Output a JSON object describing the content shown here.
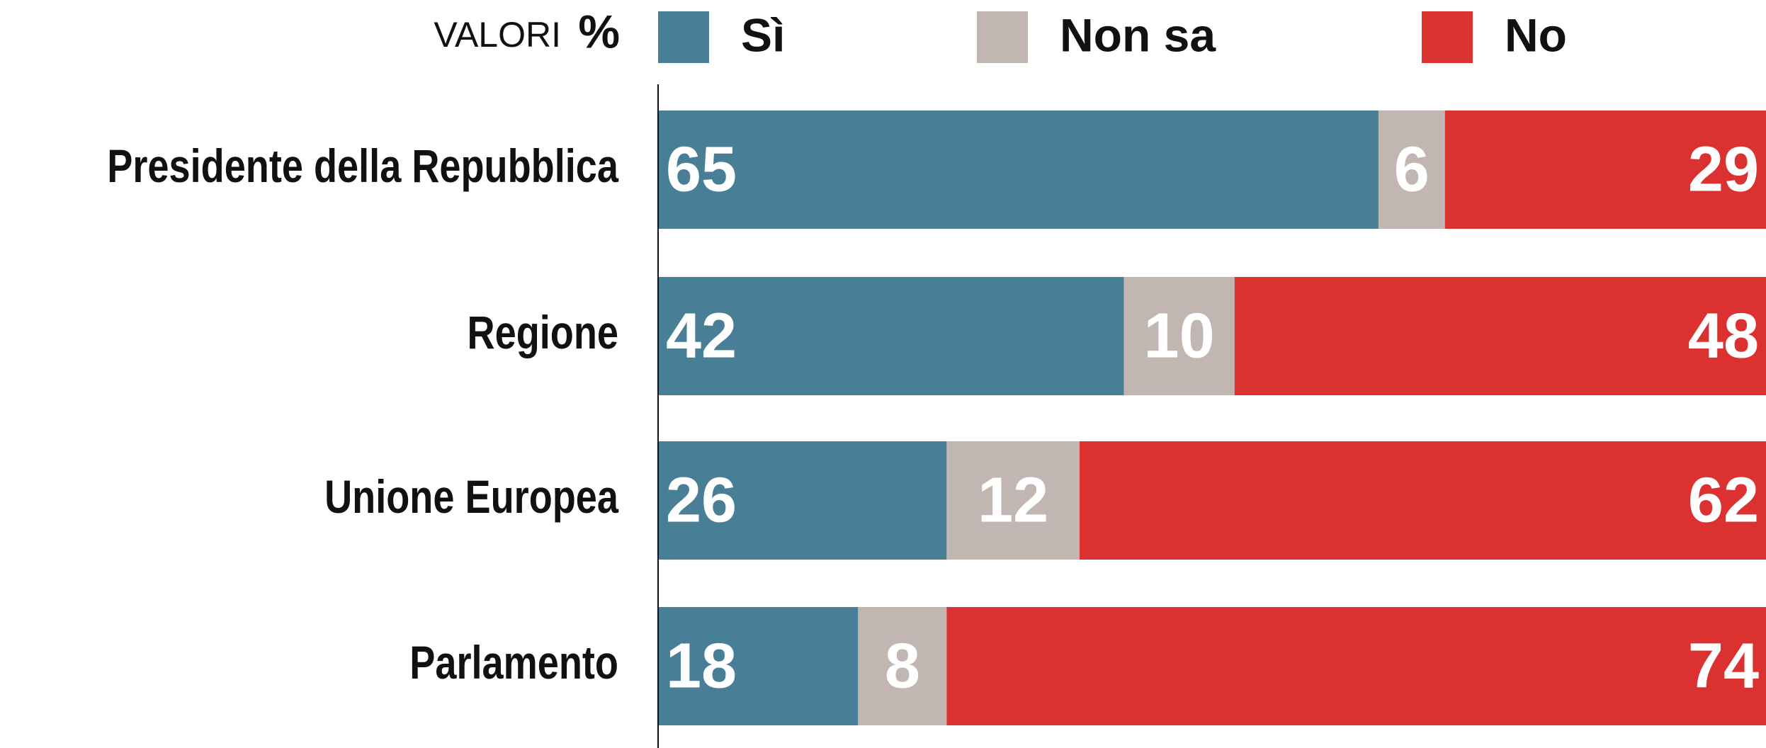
{
  "chart_data": {
    "type": "stacked-bar-horizontal",
    "subtitle": "VALORI",
    "unit": "%",
    "categories": [
      "Presidente della Repubblica",
      "Regione",
      "Unione Europea",
      "Parlamento"
    ],
    "series": [
      {
        "name": "Sì",
        "color": "#487e96",
        "values": [
          65,
          42,
          26,
          18
        ]
      },
      {
        "name": "Non sa",
        "color": "#c2b6b2",
        "values": [
          6,
          10,
          12,
          8
        ]
      },
      {
        "name": "No",
        "color": "#dc3131",
        "values": [
          29,
          48,
          62,
          74
        ]
      }
    ],
    "xlim": [
      0,
      100
    ]
  }
}
